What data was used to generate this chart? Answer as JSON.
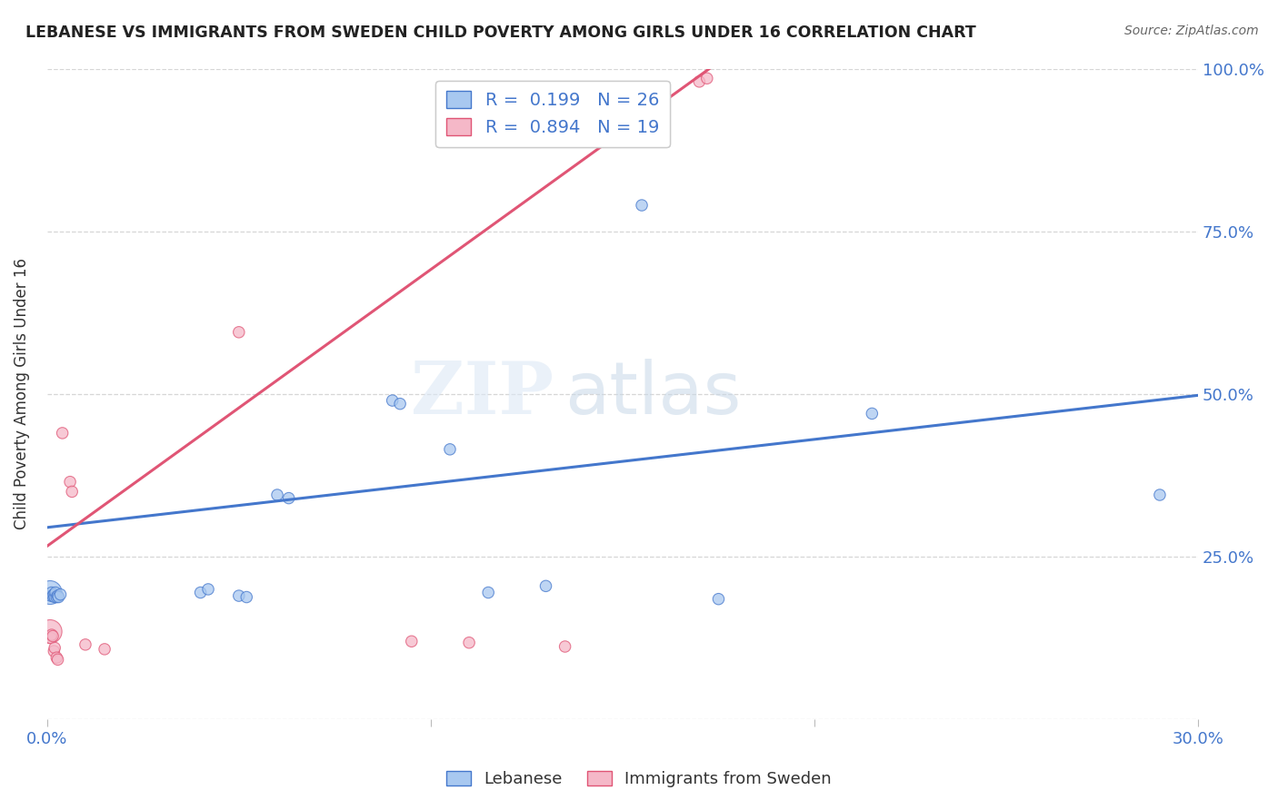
{
  "title": "LEBANESE VS IMMIGRANTS FROM SWEDEN CHILD POVERTY AMONG GIRLS UNDER 16 CORRELATION CHART",
  "source": "Source: ZipAtlas.com",
  "ylabel": "Child Poverty Among Girls Under 16",
  "xlim": [
    0.0,
    0.3
  ],
  "ylim": [
    0.0,
    1.0
  ],
  "watermark_zip": "ZIP",
  "watermark_atlas": "atlas",
  "legend_R_blue": "0.199",
  "legend_N_blue": "26",
  "legend_R_pink": "0.894",
  "legend_N_pink": "19",
  "blue_color": "#A8C8F0",
  "pink_color": "#F5B8C8",
  "blue_line_color": "#4477CC",
  "pink_line_color": "#E05575",
  "tick_color": "#4477CC",
  "blue_scatter": [
    [
      0.0008,
      0.195
    ],
    [
      0.001,
      0.19
    ],
    [
      0.0012,
      0.195
    ],
    [
      0.0015,
      0.19
    ],
    [
      0.0018,
      0.192
    ],
    [
      0.002,
      0.188
    ],
    [
      0.0022,
      0.195
    ],
    [
      0.0025,
      0.188
    ],
    [
      0.0028,
      0.19
    ],
    [
      0.003,
      0.188
    ],
    [
      0.0035,
      0.192
    ],
    [
      0.04,
      0.195
    ],
    [
      0.042,
      0.2
    ],
    [
      0.05,
      0.19
    ],
    [
      0.052,
      0.188
    ],
    [
      0.06,
      0.345
    ],
    [
      0.063,
      0.34
    ],
    [
      0.09,
      0.49
    ],
    [
      0.092,
      0.485
    ],
    [
      0.105,
      0.415
    ],
    [
      0.115,
      0.195
    ],
    [
      0.13,
      0.205
    ],
    [
      0.155,
      0.79
    ],
    [
      0.175,
      0.185
    ],
    [
      0.215,
      0.47
    ],
    [
      0.29,
      0.345
    ]
  ],
  "pink_scatter": [
    [
      0.0008,
      0.135
    ],
    [
      0.001,
      0.125
    ],
    [
      0.0012,
      0.13
    ],
    [
      0.0015,
      0.128
    ],
    [
      0.0018,
      0.105
    ],
    [
      0.002,
      0.11
    ],
    [
      0.0025,
      0.095
    ],
    [
      0.0028,
      0.092
    ],
    [
      0.004,
      0.44
    ],
    [
      0.006,
      0.365
    ],
    [
      0.0065,
      0.35
    ],
    [
      0.01,
      0.115
    ],
    [
      0.015,
      0.108
    ],
    [
      0.05,
      0.595
    ],
    [
      0.095,
      0.12
    ],
    [
      0.11,
      0.118
    ],
    [
      0.17,
      0.98
    ],
    [
      0.172,
      0.985
    ],
    [
      0.135,
      0.112
    ]
  ],
  "blue_sizes_special": [
    [
      0,
      350
    ]
  ],
  "pink_sizes_special": [
    [
      0,
      350
    ]
  ],
  "default_size": 80,
  "blue_trendline": [
    [
      0.0,
      0.295
    ],
    [
      0.3,
      0.498
    ]
  ],
  "pink_trendline": [
    [
      -0.005,
      0.245
    ],
    [
      0.175,
      1.01
    ]
  ]
}
